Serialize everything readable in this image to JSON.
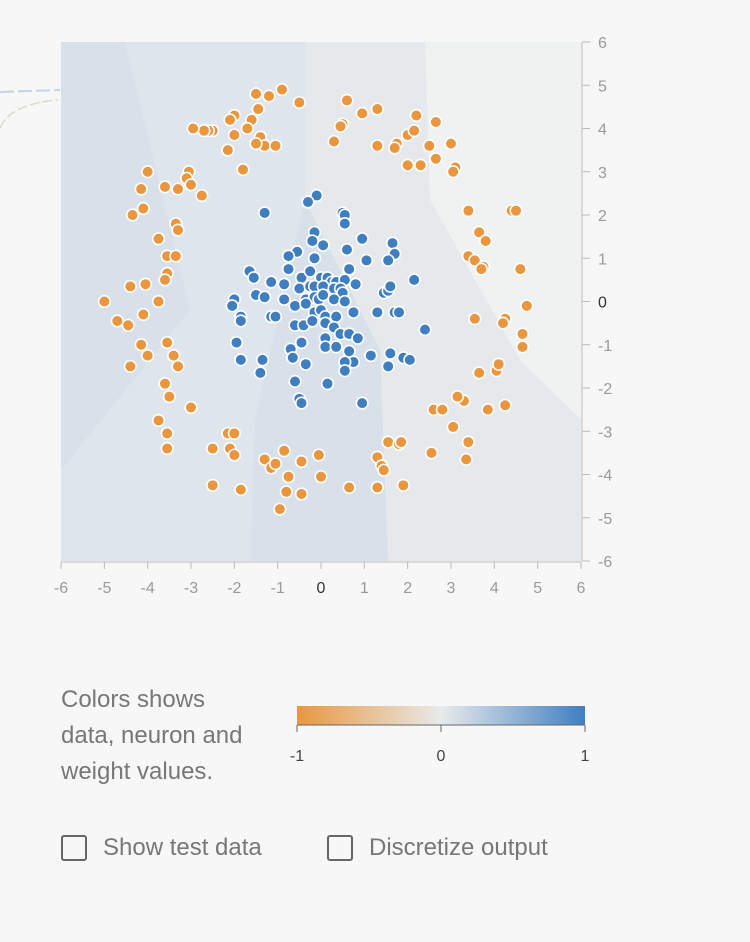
{
  "chart_data": {
    "type": "scatter",
    "xlim": [
      -6,
      6
    ],
    "ylim": [
      -6,
      6
    ],
    "x_ticks": [
      "-6",
      "-5",
      "-4",
      "-3",
      "-2",
      "-1",
      "0",
      "1",
      "2",
      "3",
      "4",
      "5",
      "6"
    ],
    "y_ticks": [
      "6",
      "5",
      "4",
      "3",
      "2",
      "1",
      "0",
      "-1",
      "-2",
      "-3",
      "-4",
      "-5",
      "-6"
    ],
    "grid": false,
    "series": [
      {
        "class": "orange",
        "color": "#e9963e",
        "points": [
          [
            -1.5,
            4.8
          ],
          [
            -1.2,
            4.75
          ],
          [
            -0.9,
            4.9
          ],
          [
            -0.5,
            4.6
          ],
          [
            -1.45,
            4.45
          ],
          [
            -1.6,
            4.2
          ],
          [
            -2.0,
            4.3
          ],
          [
            -2.1,
            4.2
          ],
          [
            -1.7,
            4.0
          ],
          [
            -1.4,
            3.8
          ],
          [
            -1.3,
            3.6
          ],
          [
            -1.05,
            3.6
          ],
          [
            -1.5,
            3.65
          ],
          [
            -2.0,
            3.85
          ],
          [
            -2.15,
            3.5
          ],
          [
            -2.5,
            3.95
          ],
          [
            -2.6,
            3.95
          ],
          [
            -2.7,
            3.95
          ],
          [
            -2.95,
            4.0
          ],
          [
            -1.8,
            3.05
          ],
          [
            0.6,
            4.65
          ],
          [
            0.95,
            4.35
          ],
          [
            1.3,
            4.45
          ],
          [
            0.5,
            4.1
          ],
          [
            0.45,
            4.05
          ],
          [
            0.3,
            3.7
          ],
          [
            1.3,
            3.6
          ],
          [
            1.75,
            3.65
          ],
          [
            1.7,
            3.55
          ],
          [
            2.0,
            3.85
          ],
          [
            2.15,
            3.95
          ],
          [
            2.2,
            4.3
          ],
          [
            2.65,
            4.15
          ],
          [
            2.5,
            3.6
          ],
          [
            3.0,
            3.65
          ],
          [
            2.65,
            3.3
          ],
          [
            2.0,
            3.15
          ],
          [
            2.3,
            3.15
          ],
          [
            3.1,
            3.1
          ],
          [
            3.05,
            3.0
          ],
          [
            -4.0,
            3.0
          ],
          [
            -4.15,
            2.6
          ],
          [
            -3.6,
            2.65
          ],
          [
            -3.3,
            2.6
          ],
          [
            -3.05,
            3.0
          ],
          [
            -3.1,
            2.85
          ],
          [
            -3.0,
            2.7
          ],
          [
            -2.75,
            2.45
          ],
          [
            -4.1,
            2.15
          ],
          [
            -4.35,
            2.0
          ],
          [
            3.4,
            2.1
          ],
          [
            4.4,
            2.1
          ],
          [
            4.5,
            2.1
          ],
          [
            3.65,
            1.6
          ],
          [
            3.8,
            1.4
          ],
          [
            3.4,
            1.05
          ],
          [
            3.55,
            0.95
          ],
          [
            3.75,
            0.8
          ],
          [
            3.7,
            0.75
          ],
          [
            4.6,
            0.75
          ],
          [
            -3.35,
            1.8
          ],
          [
            -3.3,
            1.65
          ],
          [
            -3.75,
            1.45
          ],
          [
            -3.55,
            1.05
          ],
          [
            -3.35,
            1.05
          ],
          [
            -3.55,
            0.65
          ],
          [
            -3.6,
            0.5
          ],
          [
            -4.05,
            0.4
          ],
          [
            -4.4,
            0.35
          ],
          [
            -3.75,
            0.0
          ],
          [
            -5.0,
            0.0
          ],
          [
            -4.7,
            -0.45
          ],
          [
            -4.45,
            -0.55
          ],
          [
            -4.1,
            -0.3
          ],
          [
            -4.15,
            -1.0
          ],
          [
            -4.0,
            -1.25
          ],
          [
            -4.4,
            -1.5
          ],
          [
            -3.55,
            -0.95
          ],
          [
            -3.4,
            -1.25
          ],
          [
            -3.3,
            -1.5
          ],
          [
            -3.6,
            -1.9
          ],
          [
            -3.5,
            -2.2
          ],
          [
            -3.75,
            -2.75
          ],
          [
            -3.55,
            -3.05
          ],
          [
            -3.55,
            -3.4
          ],
          [
            -3.0,
            -2.45
          ],
          [
            -2.5,
            -3.4
          ],
          [
            -2.15,
            -3.05
          ],
          [
            -2.0,
            -3.05
          ],
          [
            -2.1,
            -3.4
          ],
          [
            -2.0,
            -3.55
          ],
          [
            -2.5,
            -4.25
          ],
          [
            -1.85,
            -4.35
          ],
          [
            -1.3,
            -3.65
          ],
          [
            -1.15,
            -3.85
          ],
          [
            -1.05,
            -3.75
          ],
          [
            -0.85,
            -3.45
          ],
          [
            -0.45,
            -3.7
          ],
          [
            -0.05,
            -3.55
          ],
          [
            -0.75,
            -4.05
          ],
          [
            -0.8,
            -4.4
          ],
          [
            -0.45,
            -4.45
          ],
          [
            -0.95,
            -4.8
          ],
          [
            0.0,
            -4.05
          ],
          [
            0.65,
            -4.3
          ],
          [
            1.3,
            -3.6
          ],
          [
            1.4,
            -3.8
          ],
          [
            1.45,
            -3.9
          ],
          [
            1.55,
            -3.25
          ],
          [
            1.8,
            -3.3
          ],
          [
            1.85,
            -3.25
          ],
          [
            1.3,
            -4.3
          ],
          [
            1.9,
            -4.25
          ],
          [
            2.6,
            -2.5
          ],
          [
            2.8,
            -2.5
          ],
          [
            2.55,
            -3.5
          ],
          [
            3.05,
            -2.9
          ],
          [
            3.3,
            -2.3
          ],
          [
            3.15,
            -2.2
          ],
          [
            3.4,
            -3.25
          ],
          [
            3.35,
            -3.65
          ],
          [
            3.85,
            -2.5
          ],
          [
            4.25,
            -2.4
          ],
          [
            3.65,
            -1.65
          ],
          [
            4.05,
            -1.6
          ],
          [
            4.1,
            -1.45
          ],
          [
            3.55,
            -0.4
          ],
          [
            4.25,
            -0.4
          ],
          [
            4.2,
            -0.5
          ],
          [
            4.65,
            -0.75
          ],
          [
            4.65,
            -1.05
          ],
          [
            4.75,
            -0.1
          ]
        ]
      },
      {
        "class": "blue",
        "color": "#3f7fc1",
        "points": [
          [
            -0.1,
            2.45
          ],
          [
            -0.3,
            2.3
          ],
          [
            0.5,
            2.05
          ],
          [
            0.55,
            2.0
          ],
          [
            0.55,
            1.8
          ],
          [
            -1.3,
            2.05
          ],
          [
            -0.55,
            1.15
          ],
          [
            -0.15,
            1.6
          ],
          [
            -0.2,
            1.4
          ],
          [
            0.05,
            1.3
          ],
          [
            0.95,
            1.45
          ],
          [
            0.6,
            1.2
          ],
          [
            1.65,
            1.35
          ],
          [
            1.7,
            1.1
          ],
          [
            1.05,
            0.95
          ],
          [
            1.55,
            0.95
          ],
          [
            -0.75,
            1.05
          ],
          [
            -0.15,
            1.0
          ],
          [
            -0.75,
            0.75
          ],
          [
            -0.45,
            0.55
          ],
          [
            -0.25,
            0.7
          ],
          [
            0.0,
            0.55
          ],
          [
            0.15,
            0.55
          ],
          [
            0.25,
            0.45
          ],
          [
            0.35,
            0.45
          ],
          [
            0.65,
            0.75
          ],
          [
            0.55,
            0.5
          ],
          [
            -1.65,
            0.7
          ],
          [
            -1.55,
            0.55
          ],
          [
            -1.15,
            0.45
          ],
          [
            -0.85,
            0.4
          ],
          [
            -0.5,
            0.3
          ],
          [
            -0.25,
            0.35
          ],
          [
            -0.15,
            0.35
          ],
          [
            0.05,
            0.35
          ],
          [
            0.3,
            0.3
          ],
          [
            0.45,
            0.3
          ],
          [
            0.5,
            0.2
          ],
          [
            0.8,
            0.4
          ],
          [
            1.45,
            0.2
          ],
          [
            1.55,
            0.25
          ],
          [
            1.6,
            0.35
          ],
          [
            2.15,
            0.5
          ],
          [
            -1.5,
            0.15
          ],
          [
            -1.3,
            0.1
          ],
          [
            -0.85,
            0.05
          ],
          [
            -0.35,
            0.05
          ],
          [
            -0.15,
            0.1
          ],
          [
            -0.05,
            0.05
          ],
          [
            0.05,
            0.15
          ],
          [
            0.3,
            0.05
          ],
          [
            0.55,
            0.0
          ],
          [
            -2.0,
            0.05
          ],
          [
            -2.05,
            -0.1
          ],
          [
            -1.85,
            -0.35
          ],
          [
            -1.85,
            -0.45
          ],
          [
            -1.15,
            -0.35
          ],
          [
            -1.05,
            -0.35
          ],
          [
            -0.6,
            -0.1
          ],
          [
            -0.35,
            -0.05
          ],
          [
            -0.15,
            -0.25
          ],
          [
            0.0,
            -0.2
          ],
          [
            0.1,
            -0.35
          ],
          [
            0.35,
            -0.35
          ],
          [
            0.75,
            -0.25
          ],
          [
            1.3,
            -0.25
          ],
          [
            1.7,
            -0.25
          ],
          [
            1.8,
            -0.25
          ],
          [
            -1.95,
            -0.95
          ],
          [
            -1.85,
            -1.35
          ],
          [
            -1.35,
            -1.35
          ],
          [
            -1.4,
            -1.65
          ],
          [
            -0.7,
            -1.1
          ],
          [
            -0.65,
            -1.3
          ],
          [
            -0.45,
            -0.95
          ],
          [
            -0.6,
            -0.55
          ],
          [
            -0.4,
            -0.55
          ],
          [
            -0.2,
            -0.45
          ],
          [
            0.1,
            -0.5
          ],
          [
            0.3,
            -0.6
          ],
          [
            0.45,
            -0.75
          ],
          [
            0.65,
            -0.75
          ],
          [
            0.85,
            -0.85
          ],
          [
            0.1,
            -0.85
          ],
          [
            0.1,
            -1.05
          ],
          [
            0.35,
            -1.05
          ],
          [
            0.65,
            -1.15
          ],
          [
            0.75,
            -1.4
          ],
          [
            0.55,
            -1.4
          ],
          [
            0.55,
            -1.6
          ],
          [
            1.15,
            -1.25
          ],
          [
            1.6,
            -1.2
          ],
          [
            1.55,
            -1.5
          ],
          [
            1.9,
            -1.3
          ],
          [
            2.05,
            -1.35
          ],
          [
            2.4,
            -0.65
          ],
          [
            -0.35,
            -1.45
          ],
          [
            -0.6,
            -1.85
          ],
          [
            -0.5,
            -2.25
          ],
          [
            -0.45,
            -2.35
          ],
          [
            0.15,
            -1.9
          ],
          [
            0.95,
            -2.35
          ]
        ]
      }
    ]
  },
  "legend": {
    "caption_lines": [
      "Colors shows",
      "data, neuron and",
      "weight values."
    ],
    "colorbar": {
      "labels": [
        "-1",
        "0",
        "1"
      ],
      "color_neg": "#e9963e",
      "color_mid": "#e8eaeb",
      "color_pos": "#3f7fc1"
    }
  },
  "controls": {
    "show_test_data": "Show test data",
    "discretize_output": "Discretize output"
  },
  "colors": {
    "axis": "#bbbbbb",
    "bg_left": "#d8e1ea",
    "bg_mid": "#dfe5ec",
    "bg_right": "#e6e9ec",
    "bg_edge": "#f0f1f1",
    "point_stroke": "#ffffff"
  }
}
